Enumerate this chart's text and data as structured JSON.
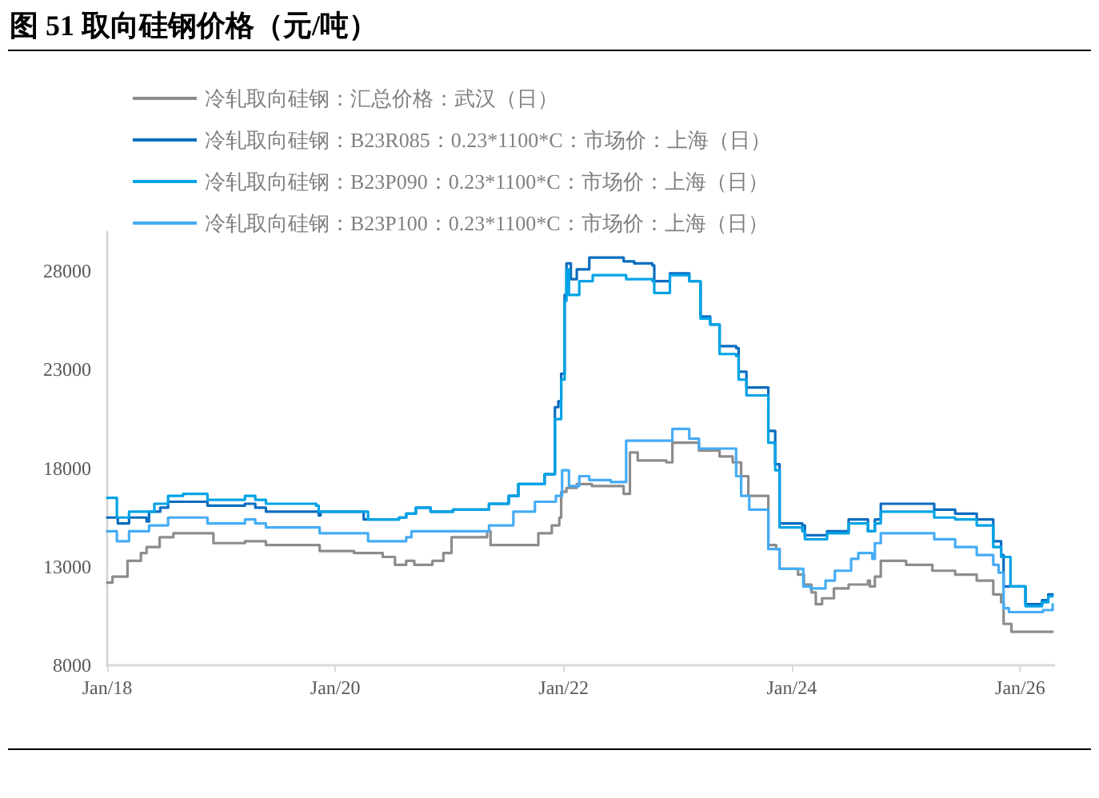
{
  "chart_data": {
    "type": "step",
    "title": "图 51 取向硅钢价格（元/吨）",
    "series": [
      {
        "name": "冷轧取向硅钢：汇总价格：武汉（日）",
        "color": "#8c8c8c",
        "x": [
          "2018-01-01",
          "2018-01-18",
          "2018-03-07",
          "2018-04-19",
          "2018-05-07",
          "2018-06-18",
          "2018-08-01",
          "2018-12-07",
          "2019-03-18",
          "2019-05-24",
          "2019-11-12",
          "2020-03-01",
          "2020-06-01",
          "2020-07-10",
          "2020-08-15",
          "2020-09-10",
          "2020-11-07",
          "2020-12-12",
          "2021-01-07",
          "2021-05-01",
          "2021-05-12",
          "2021-10-12",
          "2021-11-24",
          "2021-12-18",
          "2021-12-24",
          "2022-01-10",
          "2022-02-12",
          "2022-04-01",
          "2022-07-12",
          "2022-08-01",
          "2022-08-26",
          "2022-11-26",
          "2022-12-15",
          "2023-03-10",
          "2023-05-15",
          "2023-06-26",
          "2023-07-23",
          "2023-08-15",
          "2023-10-18",
          "2023-11-12",
          "2023-11-23",
          "2024-01-21",
          "2024-02-09",
          "2024-03-04",
          "2024-03-18",
          "2024-04-07",
          "2024-05-15",
          "2024-07-01",
          "2024-09-01",
          "2024-09-07",
          "2024-09-23",
          "2024-10-12",
          "2025-01-01",
          "2025-03-26",
          "2025-06-07",
          "2025-08-15",
          "2025-10-07",
          "2025-11-01",
          "2025-11-09",
          "2025-12-04",
          "2026-04-15"
        ],
        "values": [
          12200,
          12500,
          13300,
          13700,
          14000,
          14500,
          14700,
          14200,
          14300,
          14100,
          13800,
          13700,
          13500,
          13100,
          13300,
          13100,
          13300,
          13700,
          14500,
          14800,
          14100,
          14700,
          15100,
          15500,
          16800,
          17000,
          17200,
          17100,
          16700,
          18800,
          18400,
          18300,
          19300,
          18900,
          18600,
          18300,
          17600,
          16600,
          14100,
          13900,
          12900,
          12600,
          12100,
          11700,
          11100,
          11400,
          11900,
          12100,
          12300,
          12000,
          12500,
          13300,
          13100,
          12800,
          12600,
          12300,
          11600,
          11200,
          10100,
          9700,
          9700
        ]
      },
      {
        "name": "冷轧取向硅钢：B23R085：0.23*1100*C：市场价：上海（日）",
        "color": "#0a6cbf",
        "x": [
          "2018-01-01",
          "2018-02-04",
          "2018-03-12",
          "2018-05-07",
          "2018-05-15",
          "2018-06-20",
          "2018-07-15",
          "2018-11-18",
          "2019-03-18",
          "2019-04-20",
          "2019-05-24",
          "2019-11-09",
          "2019-11-15",
          "2020-04-01",
          "2020-07-23",
          "2020-08-15",
          "2020-09-15",
          "2020-11-01",
          "2021-01-12",
          "2021-05-07",
          "2021-07-09",
          "2021-08-09",
          "2021-11-01",
          "2021-12-04",
          "2021-12-15",
          "2021-12-24",
          "2022-01-04",
          "2022-01-10",
          "2022-01-24",
          "2022-02-12",
          "2022-03-24",
          "2022-07-12",
          "2022-08-15",
          "2022-10-12",
          "2022-10-18",
          "2022-12-07",
          "2023-02-07",
          "2023-03-15",
          "2023-04-15",
          "2023-05-15",
          "2023-07-07",
          "2023-07-15",
          "2023-08-09",
          "2023-10-18",
          "2023-11-09",
          "2023-11-23",
          "2024-02-04",
          "2024-02-12",
          "2024-04-23",
          "2024-07-01",
          "2024-09-01",
          "2024-09-23",
          "2024-10-12",
          "2025-04-01",
          "2025-06-07",
          "2025-08-15",
          "2025-10-07",
          "2025-11-01",
          "2025-11-09",
          "2026-01-18",
          "2026-03-12",
          "2026-04-01",
          "2026-04-15"
        ],
        "values": [
          15500,
          15200,
          15500,
          15300,
          15800,
          16000,
          16300,
          16100,
          16200,
          16000,
          15800,
          15600,
          15800,
          15400,
          15500,
          15700,
          16000,
          15800,
          15900,
          16200,
          16600,
          17200,
          17700,
          21100,
          21400,
          22800,
          26800,
          28400,
          27600,
          28100,
          28700,
          28500,
          28400,
          28300,
          27500,
          27900,
          27500,
          25700,
          25300,
          24200,
          24100,
          22900,
          22100,
          19900,
          18200,
          15200,
          15100,
          14600,
          14800,
          15400,
          14800,
          15400,
          16200,
          15900,
          15700,
          15400,
          14300,
          13600,
          12000,
          11100,
          11300,
          11600,
          11600
        ]
      },
      {
        "name": "冷轧取向硅钢：B23P090：0.23*1100*C：市场价：上海（日）",
        "color": "#00a3e6",
        "x": [
          "2018-01-01",
          "2018-02-01",
          "2018-03-12",
          "2018-06-01",
          "2018-07-15",
          "2018-09-01",
          "2018-11-18",
          "2019-03-18",
          "2019-04-20",
          "2019-05-24",
          "2019-11-01",
          "2019-11-09",
          "2020-04-15",
          "2020-07-23",
          "2020-08-15",
          "2020-09-15",
          "2020-11-01",
          "2021-01-12",
          "2021-05-07",
          "2021-07-09",
          "2021-08-09",
          "2021-11-01",
          "2021-12-04",
          "2021-12-24",
          "2022-01-04",
          "2022-01-10",
          "2022-01-18",
          "2022-02-20",
          "2022-04-04",
          "2022-07-20",
          "2022-10-12",
          "2022-10-18",
          "2022-12-07",
          "2023-02-07",
          "2023-03-15",
          "2023-04-15",
          "2023-05-15",
          "2023-07-07",
          "2023-07-15",
          "2023-08-09",
          "2023-10-18",
          "2023-11-09",
          "2023-11-23",
          "2024-02-04",
          "2024-02-12",
          "2024-04-23",
          "2024-07-01",
          "2024-09-01",
          "2024-09-23",
          "2024-10-12",
          "2025-04-01",
          "2025-06-07",
          "2025-08-15",
          "2025-10-07",
          "2025-11-01",
          "2025-12-01",
          "2026-01-18",
          "2026-03-12",
          "2026-04-01",
          "2026-04-15"
        ],
        "values": [
          16500,
          15500,
          15800,
          16200,
          16600,
          16700,
          16400,
          16600,
          16400,
          16200,
          16100,
          15800,
          15400,
          15500,
          15700,
          16000,
          15800,
          15900,
          16200,
          16600,
          17200,
          17700,
          20500,
          22500,
          26500,
          28100,
          26800,
          27500,
          27800,
          27600,
          27500,
          26900,
          27800,
          27500,
          25600,
          25300,
          23800,
          23700,
          22500,
          21700,
          19300,
          17900,
          15000,
          14800,
          14400,
          14700,
          15200,
          14800,
          15200,
          15800,
          15500,
          15400,
          15100,
          14000,
          13500,
          12000,
          11000,
          11200,
          11500,
          11500
        ]
      },
      {
        "name": "冷轧取向硅钢：B23P100：0.23*1100*C：市场价：上海（日）",
        "color": "#45acf5",
        "x": [
          "2018-01-01",
          "2018-02-01",
          "2018-03-12",
          "2018-05-15",
          "2018-07-15",
          "2018-11-18",
          "2019-03-18",
          "2019-04-20",
          "2019-05-24",
          "2019-11-12",
          "2020-04-15",
          "2020-08-15",
          "2020-09-01",
          "2021-05-07",
          "2021-07-24",
          "2021-10-01",
          "2021-12-07",
          "2021-12-27",
          "2022-01-18",
          "2022-02-20",
          "2022-03-24",
          "2022-06-01",
          "2022-07-20",
          "2022-12-15",
          "2023-02-07",
          "2023-03-10",
          "2023-07-07",
          "2023-07-23",
          "2023-08-18",
          "2023-10-18",
          "2023-11-23",
          "2024-02-07",
          "2024-03-01",
          "2024-04-18",
          "2024-05-18",
          "2024-07-09",
          "2024-08-01",
          "2024-09-15",
          "2024-09-23",
          "2024-10-12",
          "2025-04-01",
          "2025-06-07",
          "2025-08-15",
          "2025-10-07",
          "2025-10-24",
          "2025-11-09",
          "2025-11-26",
          "2026-03-15",
          "2026-04-15"
        ],
        "values": [
          14800,
          14300,
          14800,
          15100,
          15500,
          15200,
          15400,
          15200,
          15000,
          14700,
          14300,
          14500,
          14800,
          15100,
          15800,
          16300,
          16600,
          17900,
          17100,
          17600,
          17400,
          17300,
          19400,
          20000,
          19500,
          19000,
          17600,
          16600,
          15900,
          13900,
          12900,
          12000,
          11900,
          12300,
          12800,
          13400,
          13700,
          13400,
          14200,
          14700,
          14400,
          14000,
          13600,
          13100,
          12700,
          10900,
          10700,
          10800,
          11100
        ]
      }
    ],
    "xlim": [
      "2018-01-01",
      "2026-04-20"
    ],
    "xticks": [
      {
        "value": "2018-01-01",
        "label": "Jan/18"
      },
      {
        "value": "2020-01-01",
        "label": "Jan/20"
      },
      {
        "value": "2022-01-01",
        "label": "Jan/22"
      },
      {
        "value": "2024-01-01",
        "label": "Jan/24"
      },
      {
        "value": "2026-01-01",
        "label": "Jan/26"
      }
    ],
    "ylim": [
      8000,
      30000
    ],
    "yticks": [
      8000,
      13000,
      18000,
      23000,
      28000
    ],
    "grid": false,
    "legend": "top left",
    "marker": "none",
    "line_style": "solid"
  }
}
